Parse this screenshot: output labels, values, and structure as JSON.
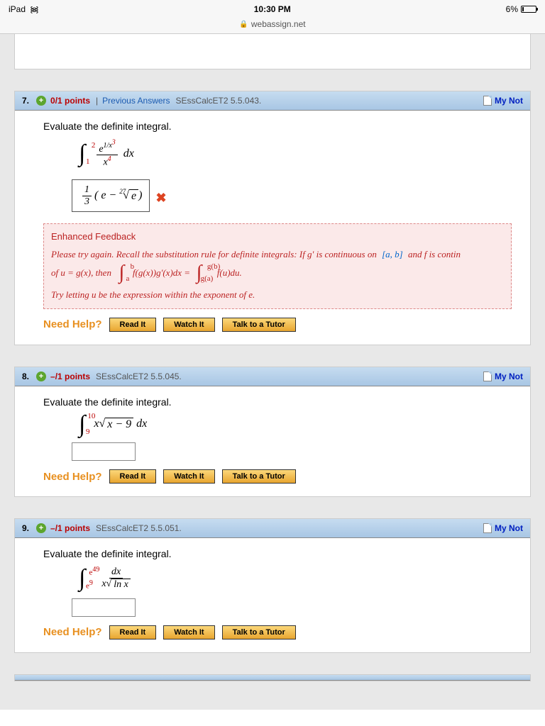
{
  "status": {
    "device": "iPad",
    "time": "10:30 PM",
    "battery_pct": "6%"
  },
  "url": "webassign.net",
  "labels": {
    "my_notes": "My Not",
    "need_help": "Need Help?",
    "read_it": "Read It",
    "watch_it": "Watch It",
    "talk_tutor": "Talk to a Tutor",
    "prev_answers": "Previous Answers",
    "prompt": "Evaluate the definite integral.",
    "enh_feedback": "Enhanced Feedback"
  },
  "q7": {
    "num": "7.",
    "points": "0/1 points",
    "source": "SEssCalcET2 5.5.043.",
    "integral": {
      "lower": "1",
      "upper": "2",
      "num_html": "e<span class='sup'>1/x<span class='sup red'>3</span></span>",
      "den_html": "x<span class='sup red'>4</span>",
      "dx": "dx"
    },
    "answer_html": "<span class='frac'><span class='fnum'>1</span><span class='fden'>3</span></span>( e − <span class='root-idx'>27</span><span class='sqrt'><span class='sqrt-sym'>√</span><span class='sqrt-arg'>e</span></span> )",
    "feedback_line1": "Please try again. Recall the substitution rule for definite integrals: If g' is continuous on",
    "feedback_bracket": "[a, b]",
    "feedback_line1b": " and f is contin",
    "feedback_line2a": "of  u = g(x),  then",
    "feedback_line3": "Try letting u be the expression within the exponent of e."
  },
  "q8": {
    "num": "8.",
    "points": "–/1 points",
    "source": "SEssCalcET2 5.5.045.",
    "integral": {
      "lower": "9",
      "upper": "10",
      "body_html": "x<span class='sqrt'><span class='sqrt-sym'>√</span><span class='sqrt-arg'>x − 9</span></span> dx"
    }
  },
  "q9": {
    "num": "9.",
    "points": "–/1 points",
    "source": "SEssCalcET2 5.5.051.",
    "integral": {
      "lower_html": "e<span class='sup'>9</span>",
      "upper_html": "e<span class='sup'>49</span>",
      "num": "dx",
      "den_html": "x<span class='sqrt'><span class='sqrt-sym'>√</span><span class='sqrt-arg'>ln x</span></span>"
    }
  }
}
